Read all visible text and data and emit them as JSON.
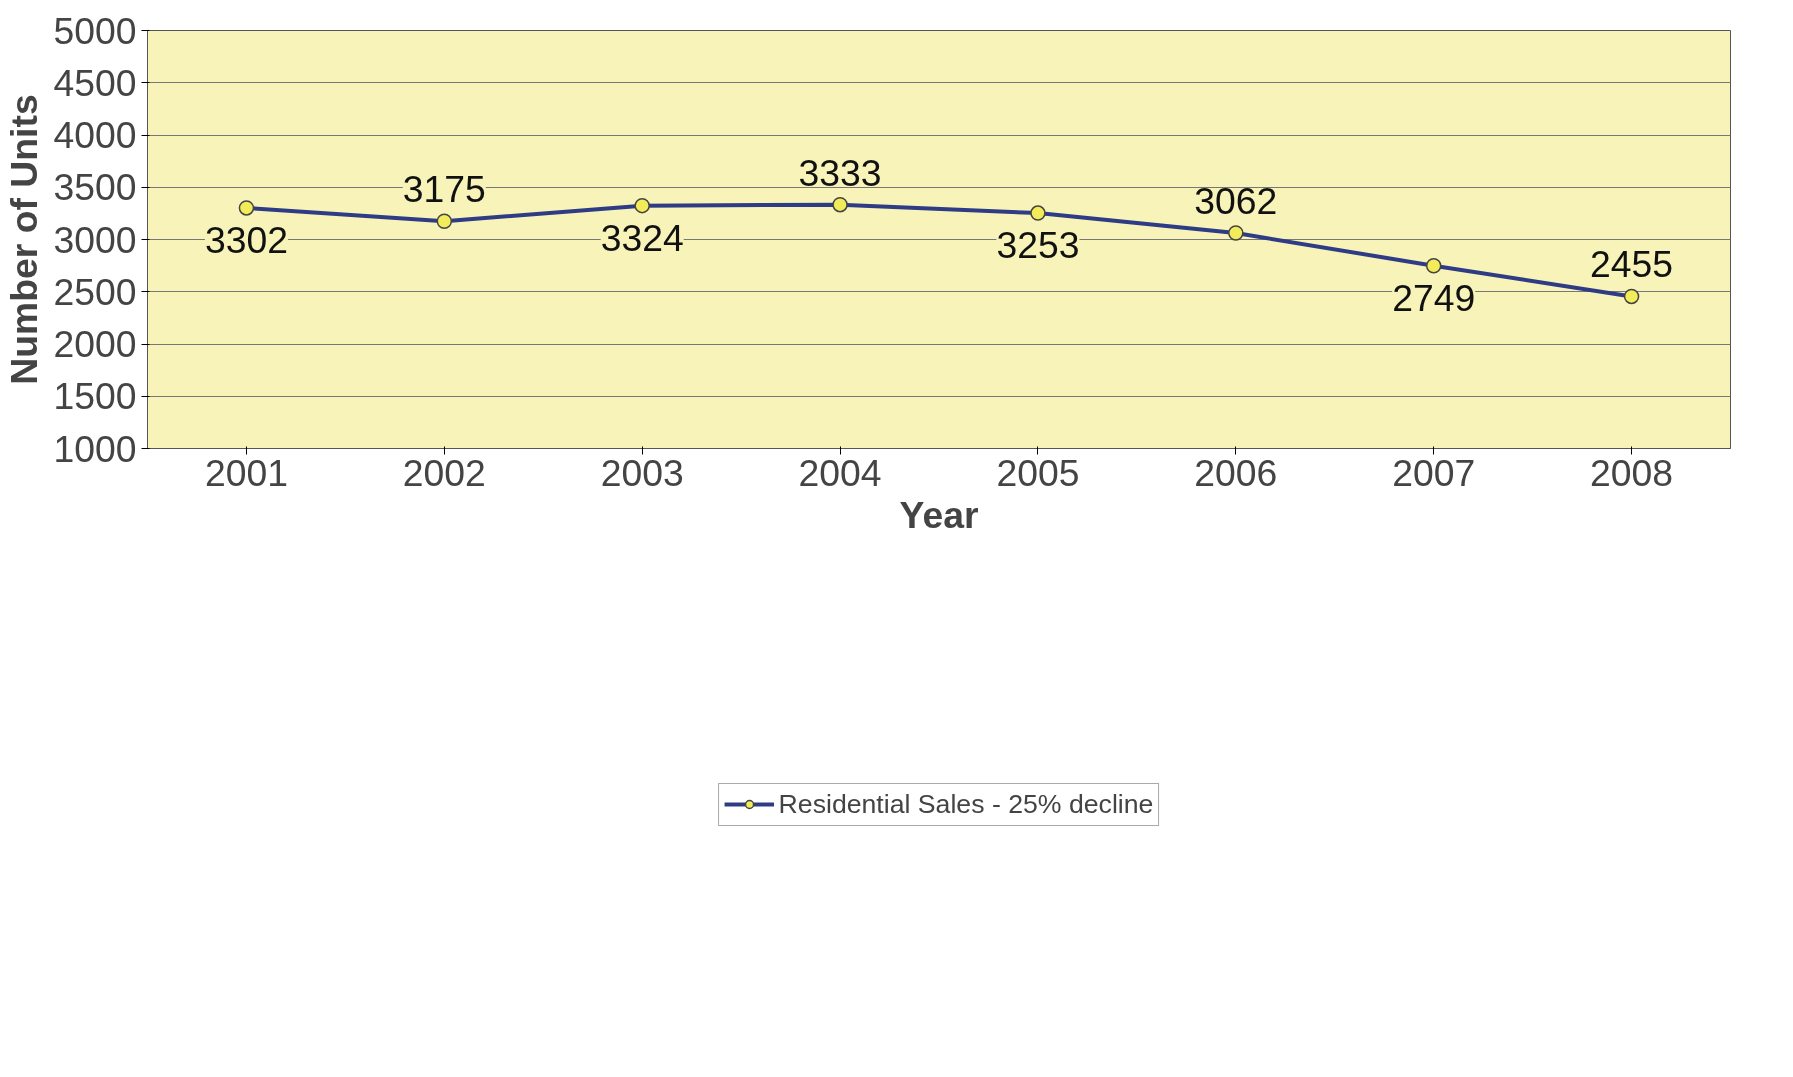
{
  "chart_data": {
    "type": "line",
    "xlabel": "Year",
    "ylabel": "Number of Units",
    "categories": [
      "2001",
      "2002",
      "2003",
      "2004",
      "2005",
      "2006",
      "2007",
      "2008"
    ],
    "series": [
      {
        "name": "Residential Sales - 25% decline",
        "color": "#2e3b85",
        "values": [
          3302,
          3175,
          3324,
          3333,
          3253,
          3062,
          2749,
          2455
        ]
      }
    ],
    "ylim": [
      1000,
      5000
    ],
    "yticks": [
      1000,
      1500,
      2000,
      2500,
      3000,
      3500,
      4000,
      4500,
      5000
    ],
    "grid": "y",
    "legend": "bottom",
    "marker": "circle",
    "data_labels": true
  }
}
